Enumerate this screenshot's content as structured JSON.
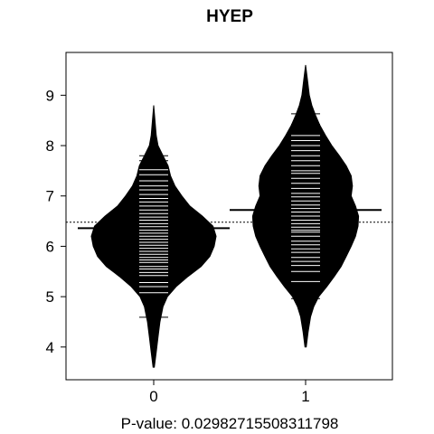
{
  "chart_data": {
    "type": "beanplot",
    "title": "HYEP",
    "xlabel": "P-value: 0.02982715508311798",
    "ylim": [
      3.35,
      9.85
    ],
    "y_ticks": [
      "4",
      "5",
      "6",
      "7",
      "8",
      "9"
    ],
    "y_tick_values": [
      4,
      5,
      6,
      7,
      8,
      9
    ],
    "overall_mean": 6.48,
    "grid": false,
    "legend": "none",
    "colors": {
      "bean": "#000000",
      "rug": "#ffffff",
      "background": "#ffffff"
    },
    "groups": [
      {
        "name": "0",
        "mean": 6.36,
        "density": [
          [
            3.6,
            0.01
          ],
          [
            3.9,
            0.04
          ],
          [
            4.2,
            0.07
          ],
          [
            4.5,
            0.1
          ],
          [
            4.8,
            0.15
          ],
          [
            5.0,
            0.22
          ],
          [
            5.2,
            0.36
          ],
          [
            5.4,
            0.55
          ],
          [
            5.6,
            0.76
          ],
          [
            5.8,
            0.9
          ],
          [
            6.0,
            0.97
          ],
          [
            6.2,
            1.0
          ],
          [
            6.4,
            0.95
          ],
          [
            6.6,
            0.78
          ],
          [
            6.8,
            0.58
          ],
          [
            7.0,
            0.45
          ],
          [
            7.2,
            0.34
          ],
          [
            7.4,
            0.27
          ],
          [
            7.6,
            0.23
          ],
          [
            7.8,
            0.15
          ],
          [
            8.0,
            0.07
          ],
          [
            8.2,
            0.04
          ],
          [
            8.5,
            0.02
          ],
          [
            8.8,
            0.0
          ]
        ],
        "rug": [
          4.59,
          5.08,
          5.2,
          5.28,
          5.42,
          5.48,
          5.55,
          5.6,
          5.68,
          5.73,
          5.78,
          5.84,
          5.9,
          5.96,
          6.02,
          6.08,
          6.14,
          6.2,
          6.26,
          6.32,
          6.39,
          6.45,
          6.52,
          6.58,
          6.65,
          6.72,
          6.8,
          6.88,
          6.95,
          7.03,
          7.12,
          7.2,
          7.3,
          7.42,
          7.52,
          7.6,
          7.7,
          7.8
        ]
      },
      {
        "name": "1",
        "mean": 6.72,
        "density": [
          [
            4.0,
            0.01
          ],
          [
            4.3,
            0.04
          ],
          [
            4.6,
            0.08
          ],
          [
            4.8,
            0.13
          ],
          [
            5.0,
            0.21
          ],
          [
            5.2,
            0.34
          ],
          [
            5.4,
            0.46
          ],
          [
            5.6,
            0.57
          ],
          [
            5.8,
            0.65
          ],
          [
            6.0,
            0.73
          ],
          [
            6.2,
            0.8
          ],
          [
            6.4,
            0.84
          ],
          [
            6.6,
            0.85
          ],
          [
            6.8,
            0.8
          ],
          [
            7.0,
            0.73
          ],
          [
            7.2,
            0.75
          ],
          [
            7.4,
            0.73
          ],
          [
            7.6,
            0.65
          ],
          [
            7.8,
            0.54
          ],
          [
            8.0,
            0.42
          ],
          [
            8.2,
            0.32
          ],
          [
            8.4,
            0.23
          ],
          [
            8.6,
            0.16
          ],
          [
            8.8,
            0.1
          ],
          [
            9.0,
            0.06
          ],
          [
            9.3,
            0.03
          ],
          [
            9.6,
            0.0
          ]
        ],
        "rug": [
          4.96,
          5.3,
          5.5,
          5.62,
          5.7,
          5.78,
          5.88,
          5.95,
          6.03,
          6.1,
          6.2,
          6.28,
          6.32,
          6.38,
          6.45,
          6.52,
          6.6,
          6.68,
          6.75,
          6.82,
          6.9,
          6.98,
          7.05,
          7.15,
          7.25,
          7.35,
          7.45,
          7.5,
          7.6,
          7.7,
          7.8,
          7.9,
          8.0,
          8.1,
          8.2,
          8.42,
          8.63
        ]
      }
    ]
  }
}
